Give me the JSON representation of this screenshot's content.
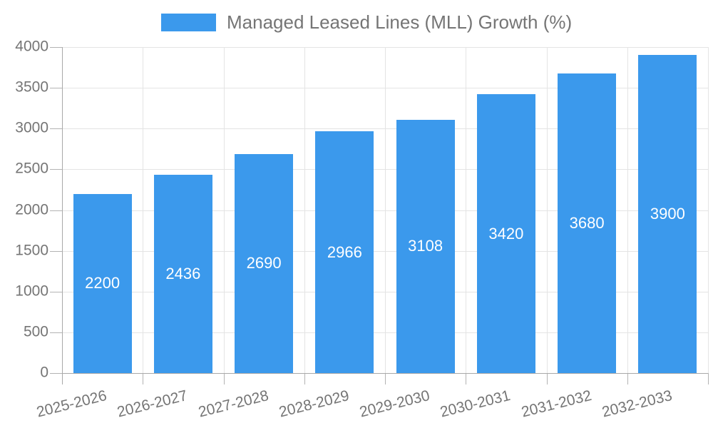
{
  "legend": {
    "label": "Managed Leased Lines (MLL) Growth (%)"
  },
  "chart_data": {
    "type": "bar",
    "title": "",
    "series_name": "Managed Leased Lines (MLL) Growth (%)",
    "categories": [
      "2025-2026",
      "2026-2027",
      "2027-2028",
      "2028-2029",
      "2029-2030",
      "2030-2031",
      "2031-2032",
      "2032-2033"
    ],
    "values": [
      2200,
      2436,
      2690,
      2966,
      3108,
      3420,
      3680,
      3900
    ],
    "bar_labels": [
      "2200",
      "2436",
      "2690",
      "2966",
      "3108",
      "3420",
      "3680",
      "3900"
    ],
    "xlabel": "",
    "ylabel": "",
    "ylim": [
      0,
      4000
    ],
    "ytick_step": 500,
    "ytick_labels": [
      "0",
      "500",
      "1000",
      "1500",
      "2000",
      "2500",
      "3000",
      "3500",
      "4000"
    ],
    "grid": true,
    "legend_position": "top"
  },
  "colors": {
    "bar": "#3b99ec",
    "axis": "#a9a9a9",
    "tick": "#b3b3b3",
    "grid": "#e4e4e4",
    "text": "#757575",
    "bar_label": "#ffffff",
    "background": "#ffffff"
  }
}
